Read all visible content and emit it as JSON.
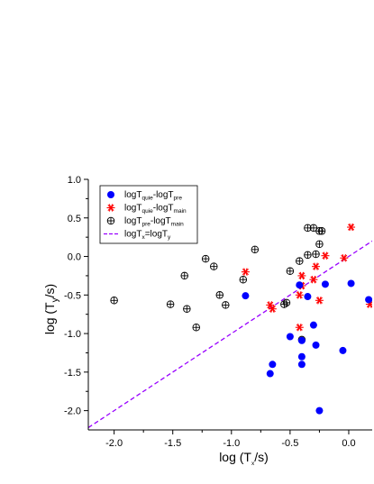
{
  "chart_data": {
    "type": "scatter",
    "xlabel": {
      "pre": "log (T",
      "sub": "x",
      "post": "/s)"
    },
    "ylabel": {
      "pre": "log (T",
      "sub": "y",
      "post": "/s)"
    },
    "xlim": [
      -2.22,
      0.2
    ],
    "ylim": [
      -2.25,
      1.0
    ],
    "x_ticks": [
      -2.0,
      -1.5,
      -1.0,
      -0.5,
      0.0
    ],
    "x_tick_labels": [
      "-2.0",
      "-1.5",
      "-1.0",
      "-0.5",
      "0.0"
    ],
    "y_ticks": [
      1.0,
      0.5,
      0.0,
      -0.5,
      -1.0,
      -1.5,
      -2.0
    ],
    "y_tick_labels": [
      "1.0",
      "0.5",
      "0.0",
      "-0.5",
      "-1.0",
      "-1.5",
      "-2.0"
    ],
    "grid": false,
    "legend_position": "top-left",
    "series": [
      {
        "legend": [
          [
            "logT",
            ""
          ],
          [
            "quie",
            "sub"
          ],
          [
            "-logT",
            ""
          ],
          [
            "pre",
            "sub"
          ]
        ],
        "marker": "filled-circle",
        "color": "#0000ff",
        "x": [
          -0.88,
          -0.65,
          -0.67,
          -0.5,
          -0.42,
          -0.4,
          -0.4,
          -0.4,
          -0.35,
          -0.3,
          -0.28,
          -0.25,
          -0.2,
          -0.05,
          0.02,
          0.17
        ],
        "y": [
          -0.51,
          -1.4,
          -1.52,
          -1.04,
          -0.37,
          -1.3,
          -1.4,
          -1.09,
          -0.52,
          -0.89,
          -1.15,
          -2.0,
          -0.36,
          -1.22,
          -0.35,
          -0.56
        ]
      },
      {
        "legend": [
          [
            "logT",
            ""
          ],
          [
            "quie",
            "sub"
          ],
          [
            "-logT",
            ""
          ],
          [
            "main",
            "sub"
          ]
        ],
        "marker": "asterisk",
        "color": "#ff0000",
        "x": [
          -0.88,
          -0.67,
          -0.65,
          -0.42,
          -0.42,
          -0.4,
          -0.4,
          -0.3,
          -0.28,
          -0.25,
          -0.2,
          -0.04,
          0.02,
          0.18
        ],
        "y": [
          -0.2,
          -0.63,
          -0.68,
          -0.5,
          -0.92,
          -0.25,
          -0.38,
          -0.3,
          -0.13,
          -0.57,
          0.01,
          -0.02,
          0.38,
          -0.62
        ]
      },
      {
        "legend": [
          [
            "logT",
            ""
          ],
          [
            "pre",
            "sub"
          ],
          [
            "-logT",
            ""
          ],
          [
            "main",
            "sub"
          ]
        ],
        "marker": "crossed-circle",
        "color": "#000000",
        "x": [
          -2.0,
          -1.52,
          -1.4,
          -1.38,
          -1.3,
          -1.22,
          -1.15,
          -1.1,
          -1.05,
          -0.9,
          -0.8,
          -0.55,
          -0.53,
          -0.5,
          -0.42,
          -0.4,
          -0.35,
          -0.35,
          -0.3,
          -0.28,
          -0.25,
          -0.25,
          -0.23
        ],
        "y": [
          -0.57,
          -0.62,
          -0.25,
          -0.68,
          -0.92,
          -0.03,
          -0.13,
          -0.5,
          -0.63,
          -0.3,
          0.09,
          -0.62,
          -0.6,
          -0.19,
          -0.06,
          -1.08,
          0.37,
          0.02,
          0.37,
          0.03,
          0.33,
          0.16,
          0.33
        ]
      },
      {
        "legend": [
          [
            "logT",
            ""
          ],
          [
            "x",
            "sub"
          ],
          [
            "=logT",
            ""
          ],
          [
            "y",
            "sub"
          ]
        ],
        "marker": "dashed-line",
        "color": "#9900ff",
        "line": {
          "slope": 1,
          "intercept": 0
        }
      }
    ]
  }
}
